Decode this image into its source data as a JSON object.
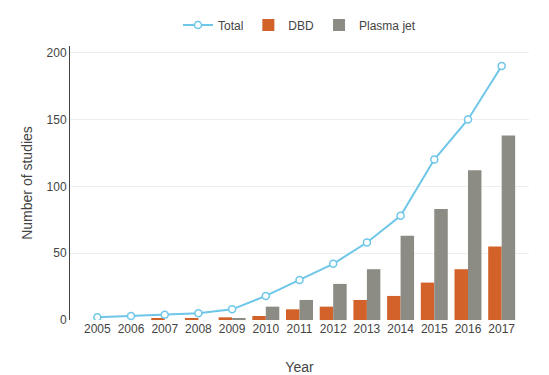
{
  "chart_data": {
    "type": "bar",
    "xlabel": "Year",
    "ylabel": "Number of studies",
    "categories": [
      "2005",
      "2006",
      "2007",
      "2008",
      "2009",
      "2010",
      "2011",
      "2012",
      "2013",
      "2014",
      "2015",
      "2016",
      "2017"
    ],
    "series": [
      {
        "name": "Total",
        "type": "line",
        "color": "#6ec6e8",
        "marker": "circle",
        "values": [
          2,
          3,
          4,
          5,
          8,
          18,
          30,
          42,
          58,
          78,
          120,
          150,
          190
        ]
      },
      {
        "name": "DBD",
        "type": "bar",
        "color": "#d2622a",
        "values": [
          0,
          0,
          1,
          1,
          2,
          3,
          8,
          10,
          15,
          18,
          28,
          38,
          55
        ]
      },
      {
        "name": "Plasma jet",
        "type": "bar",
        "color": "#8c8c84",
        "values": [
          0,
          0,
          0,
          0,
          1,
          10,
          15,
          27,
          38,
          63,
          83,
          112,
          138
        ]
      }
    ],
    "ylim": [
      0,
      205
    ],
    "yticks": [
      0,
      50,
      100,
      150,
      200
    ],
    "grid": true,
    "legend": "top"
  }
}
